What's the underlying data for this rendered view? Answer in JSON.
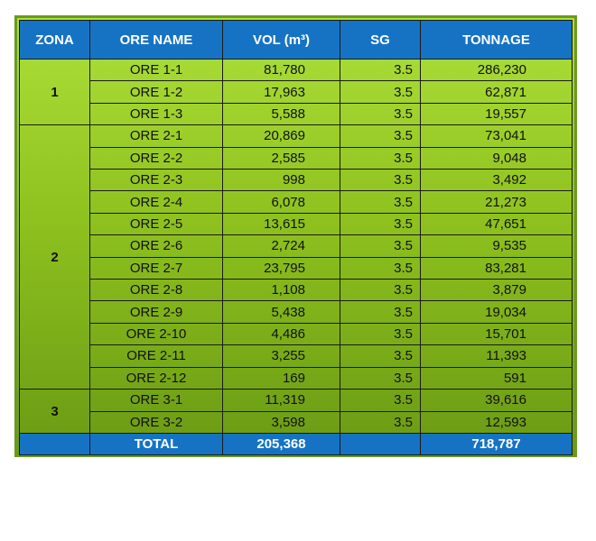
{
  "headers": {
    "zona": "ZONA",
    "ore_name": "ORE NAME",
    "vol": "VOL (m³)",
    "sg": "SG",
    "tonnage": "TONNAGE"
  },
  "zones": [
    {
      "label": "1",
      "rows": [
        {
          "ore": "ORE 1-1",
          "vol": "81,780",
          "sg": "3.5",
          "tonnage": "286,230"
        },
        {
          "ore": "ORE 1-2",
          "vol": "17,963",
          "sg": "3.5",
          "tonnage": "62,871"
        },
        {
          "ore": "ORE 1-3",
          "vol": "5,588",
          "sg": "3.5",
          "tonnage": "19,557"
        }
      ]
    },
    {
      "label": "2",
      "rows": [
        {
          "ore": "ORE 2-1",
          "vol": "20,869",
          "sg": "3.5",
          "tonnage": "73,041"
        },
        {
          "ore": "ORE 2-2",
          "vol": "2,585",
          "sg": "3.5",
          "tonnage": "9,048"
        },
        {
          "ore": "ORE 2-3",
          "vol": "998",
          "sg": "3.5",
          "tonnage": "3,492"
        },
        {
          "ore": "ORE 2-4",
          "vol": "6,078",
          "sg": "3.5",
          "tonnage": "21,273"
        },
        {
          "ore": "ORE 2-5",
          "vol": "13,615",
          "sg": "3.5",
          "tonnage": "47,651"
        },
        {
          "ore": "ORE 2-6",
          "vol": "2,724",
          "sg": "3.5",
          "tonnage": "9,535"
        },
        {
          "ore": "ORE 2-7",
          "vol": "23,795",
          "sg": "3.5",
          "tonnage": "83,281"
        },
        {
          "ore": "ORE 2-8",
          "vol": "1,108",
          "sg": "3.5",
          "tonnage": "3,879"
        },
        {
          "ore": "ORE 2-9",
          "vol": "5,438",
          "sg": "3.5",
          "tonnage": "19,034"
        },
        {
          "ore": "ORE 2-10",
          "vol": "4,486",
          "sg": "3.5",
          "tonnage": "15,701"
        },
        {
          "ore": "ORE 2-11",
          "vol": "3,255",
          "sg": "3.5",
          "tonnage": "11,393"
        },
        {
          "ore": "ORE 2-12",
          "vol": "169",
          "sg": "3.5",
          "tonnage": "591"
        }
      ]
    },
    {
      "label": "3",
      "rows": [
        {
          "ore": "ORE 3-1",
          "vol": "11,319",
          "sg": "3.5",
          "tonnage": "39,616"
        },
        {
          "ore": "ORE 3-2",
          "vol": "3,598",
          "sg": "3.5",
          "tonnage": "12,593"
        }
      ]
    }
  ],
  "total": {
    "label": "TOTAL",
    "vol": "205,368",
    "sg": "",
    "tonnage": "718,787"
  },
  "colors": {
    "header_blue": "#1673c4",
    "green_top": "#aee03a",
    "green_bottom": "#6a9a14"
  }
}
